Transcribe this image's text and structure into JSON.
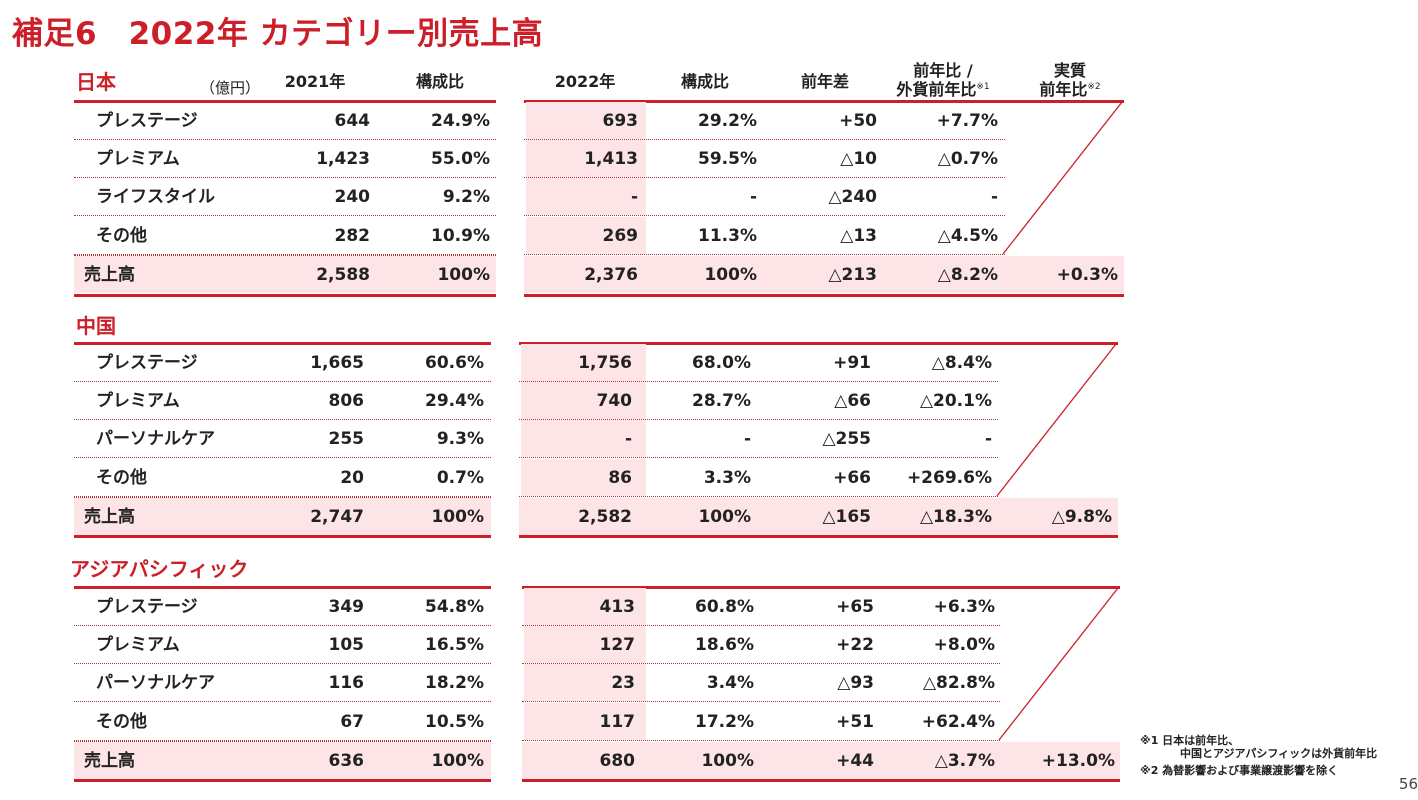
{
  "title": "補足6　2022年 カテゴリー別売上高",
  "unit_label": "（億円）",
  "headers": {
    "y2021": "2021年",
    "share2021": "構成比",
    "y2022": "2022年",
    "share2022": "構成比",
    "diff": "前年差",
    "yoy_line1": "前年比 /",
    "yoy_line2": "外貨前年比",
    "yoy_note": "※1",
    "real_line1": "実質",
    "real_line2": "前年比",
    "real_note": "※2"
  },
  "regions": [
    {
      "name": "日本",
      "rows": [
        {
          "category": "プレステージ",
          "v2021": "644",
          "s2021": "24.9%",
          "v2022": "693",
          "s2022": "29.2%",
          "diff": "+50",
          "yoy": "+7.7%",
          "real": ""
        },
        {
          "category": "プレミアム",
          "v2021": "1,423",
          "s2021": "55.0%",
          "v2022": "1,413",
          "s2022": "59.5%",
          "diff": "△10",
          "yoy": "△0.7%",
          "real": ""
        },
        {
          "category": "ライフスタイル",
          "v2021": "240",
          "s2021": "9.2%",
          "v2022": "-",
          "s2022": "-",
          "diff": "△240",
          "yoy": "-",
          "real": ""
        },
        {
          "category": "その他",
          "v2021": "282",
          "s2021": "10.9%",
          "v2022": "269",
          "s2022": "11.3%",
          "diff": "△13",
          "yoy": "△4.5%",
          "real": ""
        },
        {
          "category": "売上高",
          "v2021": "2,588",
          "s2021": "100%",
          "v2022": "2,376",
          "s2022": "100%",
          "diff": "△213",
          "yoy": "△8.2%",
          "real": "+0.3%"
        }
      ]
    },
    {
      "name": "中国",
      "rows": [
        {
          "category": "プレステージ",
          "v2021": "1,665",
          "s2021": "60.6%",
          "v2022": "1,756",
          "s2022": "68.0%",
          "diff": "+91",
          "yoy": "△8.4%",
          "real": ""
        },
        {
          "category": "プレミアム",
          "v2021": "806",
          "s2021": "29.4%",
          "v2022": "740",
          "s2022": "28.7%",
          "diff": "△66",
          "yoy": "△20.1%",
          "real": ""
        },
        {
          "category": "パーソナルケア",
          "v2021": "255",
          "s2021": "9.3%",
          "v2022": "-",
          "s2022": "-",
          "diff": "△255",
          "yoy": "-",
          "real": ""
        },
        {
          "category": "その他",
          "v2021": "20",
          "s2021": "0.7%",
          "v2022": "86",
          "s2022": "3.3%",
          "diff": "+66",
          "yoy": "+269.6%",
          "real": ""
        },
        {
          "category": "売上高",
          "v2021": "2,747",
          "s2021": "100%",
          "v2022": "2,582",
          "s2022": "100%",
          "diff": "△165",
          "yoy": "△18.3%",
          "real": "△9.8%"
        }
      ]
    },
    {
      "name": "アジアパシフィック",
      "rows": [
        {
          "category": "プレステージ",
          "v2021": "349",
          "s2021": "54.8%",
          "v2022": "413",
          "s2022": "60.8%",
          "diff": "+65",
          "yoy": "+6.3%",
          "real": ""
        },
        {
          "category": "プレミアム",
          "v2021": "105",
          "s2021": "16.5%",
          "v2022": "127",
          "s2022": "18.6%",
          "diff": "+22",
          "yoy": "+8.0%",
          "real": ""
        },
        {
          "category": "パーソナルケア",
          "v2021": "116",
          "s2021": "18.2%",
          "v2022": "23",
          "s2022": "3.4%",
          "diff": "△93",
          "yoy": "△82.8%",
          "real": ""
        },
        {
          "category": "その他",
          "v2021": "67",
          "s2021": "10.5%",
          "v2022": "117",
          "s2022": "17.2%",
          "diff": "+51",
          "yoy": "+62.4%",
          "real": ""
        },
        {
          "category": "売上高",
          "v2021": "636",
          "s2021": "100%",
          "v2022": "680",
          "s2022": "100%",
          "diff": "+44",
          "yoy": "△3.7%",
          "real": "+13.0%"
        }
      ]
    }
  ],
  "footnotes": {
    "n1_line1": "※1 日本は前年比、",
    "n1_line2": "中国とアジアパシフィックは外貨前年比",
    "n2": "※2 為替影響および事業譲渡影響を除く"
  },
  "page_number": "56",
  "colors": {
    "accent": "#cc1f2a",
    "highlight": "#fde4e6"
  }
}
